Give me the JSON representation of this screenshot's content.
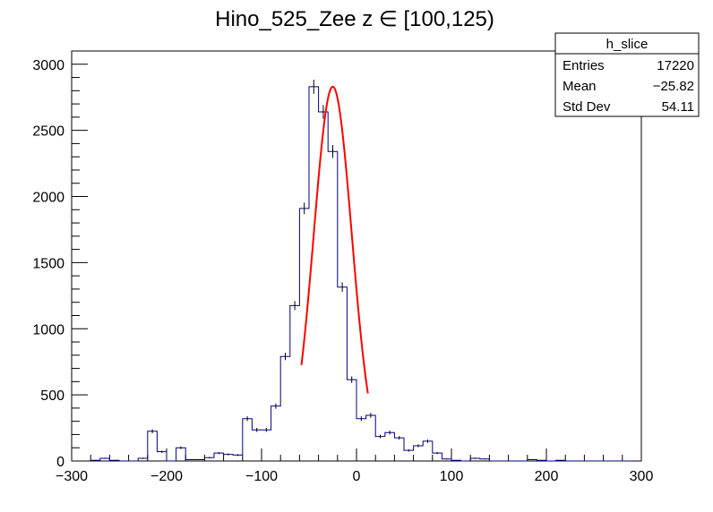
{
  "chart_data": {
    "type": "histogram",
    "title": "Hino_525_Zee z  ∈ [100,125)",
    "xlabel": "",
    "ylabel": "",
    "xlim": [
      -300,
      300
    ],
    "ylim": [
      0,
      3100
    ],
    "bin_width": 10,
    "x_ticks": [
      -300,
      -200,
      -100,
      0,
      100,
      200,
      300
    ],
    "y_ticks": [
      0,
      500,
      1000,
      1500,
      2000,
      2500,
      3000
    ],
    "grid": false,
    "histogram_color": "#000080",
    "fit_color": "#ff0000",
    "bins": [
      {
        "x": -280,
        "y": 5
      },
      {
        "x": -270,
        "y": 20
      },
      {
        "x": -260,
        "y": 5
      },
      {
        "x": -250,
        "y": 0
      },
      {
        "x": -240,
        "y": 0
      },
      {
        "x": -230,
        "y": 20
      },
      {
        "x": -220,
        "y": 225
      },
      {
        "x": -210,
        "y": 70
      },
      {
        "x": -200,
        "y": 0
      },
      {
        "x": -190,
        "y": 100
      },
      {
        "x": -180,
        "y": 10
      },
      {
        "x": -170,
        "y": 10
      },
      {
        "x": -160,
        "y": 25
      },
      {
        "x": -150,
        "y": 60
      },
      {
        "x": -140,
        "y": 50
      },
      {
        "x": -130,
        "y": 45
      },
      {
        "x": -120,
        "y": 320
      },
      {
        "x": -110,
        "y": 235
      },
      {
        "x": -100,
        "y": 235
      },
      {
        "x": -90,
        "y": 415
      },
      {
        "x": -80,
        "y": 790
      },
      {
        "x": -70,
        "y": 1175
      },
      {
        "x": -60,
        "y": 1910
      },
      {
        "x": -50,
        "y": 2830
      },
      {
        "x": -40,
        "y": 2640
      },
      {
        "x": -30,
        "y": 2340
      },
      {
        "x": -20,
        "y": 1315
      },
      {
        "x": -10,
        "y": 615
      },
      {
        "x": 0,
        "y": 320
      },
      {
        "x": 10,
        "y": 345
      },
      {
        "x": 20,
        "y": 185
      },
      {
        "x": 30,
        "y": 215
      },
      {
        "x": 40,
        "y": 175
      },
      {
        "x": 50,
        "y": 80
      },
      {
        "x": 60,
        "y": 115
      },
      {
        "x": 70,
        "y": 150
      },
      {
        "x": 80,
        "y": 60
      },
      {
        "x": 90,
        "y": 15
      },
      {
        "x": 100,
        "y": 5
      },
      {
        "x": 110,
        "y": 0
      },
      {
        "x": 120,
        "y": 20
      },
      {
        "x": 130,
        "y": 15
      },
      {
        "x": 140,
        "y": 0
      },
      {
        "x": 150,
        "y": 0
      },
      {
        "x": 160,
        "y": 0
      },
      {
        "x": 170,
        "y": 0
      },
      {
        "x": 180,
        "y": 10
      },
      {
        "x": 190,
        "y": 5
      },
      {
        "x": 200,
        "y": 0
      },
      {
        "x": 210,
        "y": 5
      },
      {
        "x": 220,
        "y": 0
      },
      {
        "x": 230,
        "y": 0
      },
      {
        "x": 240,
        "y": 0
      },
      {
        "x": 250,
        "y": 0
      },
      {
        "x": 260,
        "y": 0
      },
      {
        "x": 270,
        "y": 0
      },
      {
        "x": 280,
        "y": 0
      }
    ],
    "fit": {
      "type": "gaussian",
      "amplitude": 2830,
      "mean": -25,
      "sigma": 20,
      "x_range": [
        -58,
        12
      ]
    }
  },
  "stats_box": {
    "name": "h_slice",
    "rows": [
      {
        "label": "Entries",
        "value": "17220"
      },
      {
        "label": "Mean",
        "value": "−25.82"
      },
      {
        "label": "Std Dev",
        "value": "54.11"
      }
    ]
  }
}
